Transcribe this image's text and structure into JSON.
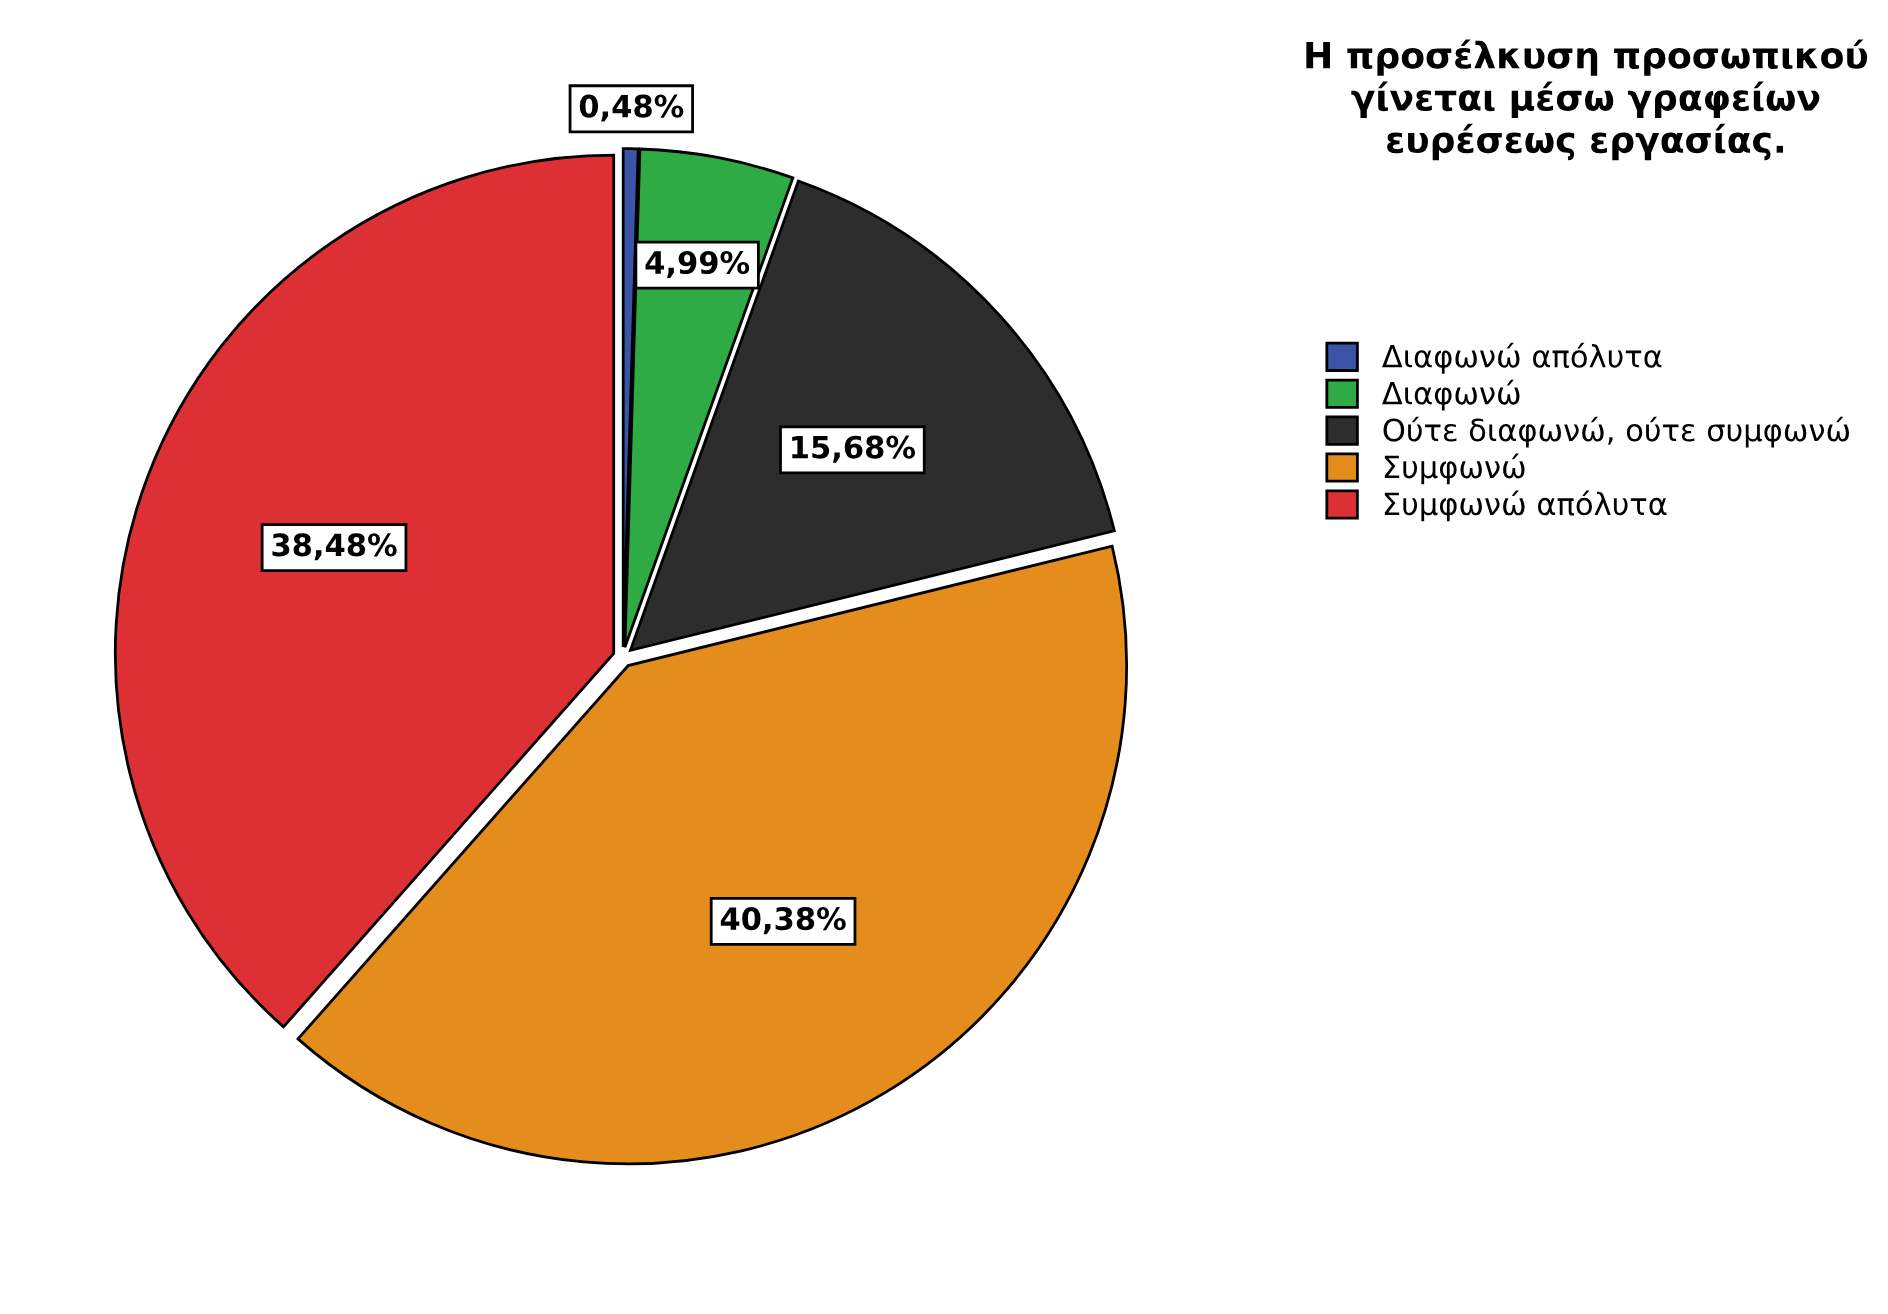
{
  "chart_data": {
    "type": "pie",
    "legend_title": "Η προσέλκυση προσωπικού γίνεται μέσω γραφείων ευρέσεως εργασίας.",
    "categories": [
      "Διαφωνώ απόλυτα",
      "Διαφωνώ",
      "Ούτε διαφωνώ, ούτε συμφωνώ",
      "Συμφωνώ",
      "Συμφωνώ απόλυτα"
    ],
    "values": [
      0.48,
      4.99,
      15.68,
      40.38,
      38.48
    ],
    "colors": [
      "#3c54a8",
      "#2eab45",
      "#2d2d2d",
      "#e48c1c",
      "#dc3035"
    ],
    "value_labels": [
      "0,48%",
      "4,99%",
      "15,68%",
      "40,38%",
      "38,48%"
    ],
    "legend": "top right"
  }
}
